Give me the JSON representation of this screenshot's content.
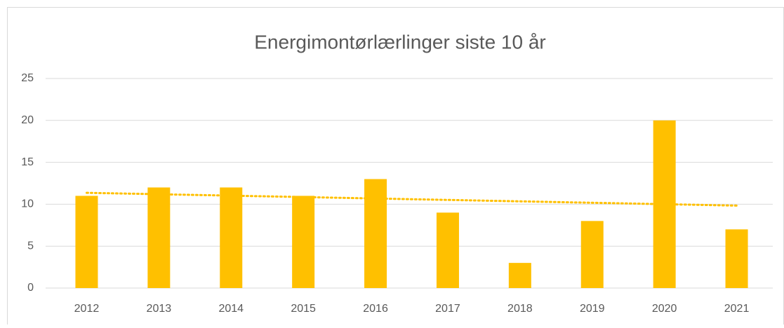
{
  "chart_data": {
    "type": "bar",
    "title": "Energimontørlærlinger siste 10 år",
    "categories": [
      "2012",
      "2013",
      "2014",
      "2015",
      "2016",
      "2017",
      "2018",
      "2019",
      "2020",
      "2021"
    ],
    "values": [
      11,
      12,
      12,
      11,
      13,
      9,
      3,
      8,
      20,
      7
    ],
    "color": "#ffc000",
    "ylim": [
      0,
      25
    ],
    "yticks": [
      0,
      5,
      10,
      15,
      20,
      25
    ],
    "grid": true,
    "trendline": "linear"
  }
}
